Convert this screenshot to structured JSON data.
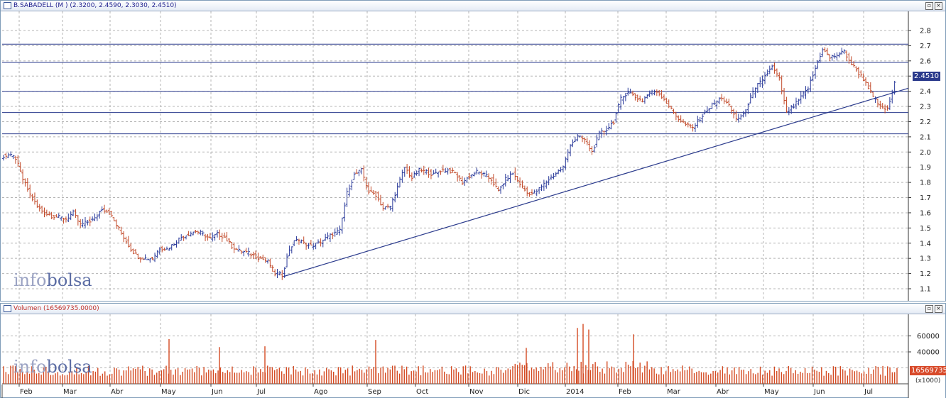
{
  "price_panel": {
    "title": "B.SABADELL (M ) (2.3200, 2.4590, 2.3030, 2.4510)",
    "last_price_label": "2.4510",
    "watermark_a": "info",
    "watermark_b": "bolsa"
  },
  "volume_panel": {
    "title": "Volumen (16569735.0000)",
    "last_volume_label": "16569735",
    "unit_label": "(x1000)",
    "watermark_a": "info",
    "watermark_b": "bolsa"
  },
  "colors": {
    "up": "#2a3a9a",
    "down": "#c24a2a",
    "volume": "#d44a22",
    "grid": "#b4b4b4",
    "lines": "#2a3a8c"
  },
  "chart_data": [
    {
      "type": "ohlc",
      "title": "B.SABADELL (M ) (2.3200, 2.4590, 2.3030, 2.4510)",
      "ylim": [
        1.03,
        2.87
      ],
      "yticks": [
        "1.1",
        "1.2",
        "1.3",
        "1.4",
        "1.5",
        "1.6",
        "1.7",
        "1.8",
        "1.9",
        "2.0",
        "2.1",
        "2.2",
        "2.3",
        "2.4",
        "2.5",
        "2.6",
        "2.7",
        "2.8"
      ],
      "x_tick_labels": [
        "Feb",
        "Mar",
        "Abr",
        "May",
        "Jun",
        "Jul",
        "Ago",
        "Sep",
        "Oct",
        "Nov",
        "Dic",
        "2014",
        "Feb",
        "Mar",
        "Abr",
        "May",
        "Jun",
        "Jul"
      ],
      "grid": true,
      "horizontal_levels": [
        2.71,
        2.59,
        2.4,
        2.26,
        2.12
      ],
      "trendline": {
        "from": [
          "Jul",
          1.18
        ],
        "to": [
          "Jul 2014",
          2.42
        ]
      },
      "close_path": [
        [
          "Ene",
          1.97
        ],
        [
          "Ene",
          1.98
        ],
        [
          "Ene",
          1.96
        ],
        [
          "Ene",
          1.82
        ],
        [
          "Ene",
          1.72
        ],
        [
          "Ene",
          1.64
        ],
        [
          "Feb",
          1.6
        ],
        [
          "Feb",
          1.58
        ],
        [
          "Feb",
          1.57
        ],
        [
          "Feb",
          1.56
        ],
        [
          "Feb",
          1.6
        ],
        [
          "Feb",
          1.52
        ],
        [
          "Mar",
          1.54
        ],
        [
          "Mar",
          1.56
        ],
        [
          "Mar",
          1.63
        ],
        [
          "Mar",
          1.6
        ],
        [
          "Mar",
          1.52
        ],
        [
          "Mar",
          1.44
        ],
        [
          "Abr",
          1.36
        ],
        [
          "Abr",
          1.31
        ],
        [
          "Abr",
          1.3
        ],
        [
          "Abr",
          1.3
        ],
        [
          "Abr",
          1.37
        ],
        [
          "Abr",
          1.36
        ],
        [
          "Abr",
          1.4
        ],
        [
          "May",
          1.44
        ],
        [
          "May",
          1.46
        ],
        [
          "May",
          1.48
        ],
        [
          "May",
          1.46
        ],
        [
          "May",
          1.43
        ],
        [
          "May",
          1.46
        ],
        [
          "May",
          1.44
        ],
        [
          "Jun",
          1.38
        ],
        [
          "Jun",
          1.35
        ],
        [
          "Jun",
          1.34
        ],
        [
          "Jun",
          1.32
        ],
        [
          "Jun",
          1.3
        ],
        [
          "Jun",
          1.28
        ],
        [
          "Jun",
          1.2
        ],
        [
          "Jul",
          1.19
        ],
        [
          "Jul",
          1.36
        ],
        [
          "Jul",
          1.43
        ],
        [
          "Jul",
          1.4
        ],
        [
          "Jul",
          1.38
        ],
        [
          "Jul",
          1.4
        ],
        [
          "Jul",
          1.43
        ],
        [
          "Jul",
          1.46
        ],
        [
          "Ago",
          1.48
        ],
        [
          "Ago",
          1.73
        ],
        [
          "Ago",
          1.85
        ],
        [
          "Ago",
          1.88
        ],
        [
          "Ago",
          1.74
        ],
        [
          "Ago",
          1.72
        ],
        [
          "Sep",
          1.63
        ],
        [
          "Sep",
          1.64
        ],
        [
          "Sep",
          1.77
        ],
        [
          "Sep",
          1.9
        ],
        [
          "Sep",
          1.83
        ],
        [
          "Sep",
          1.88
        ],
        [
          "Sep",
          1.87
        ],
        [
          "Oct",
          1.85
        ],
        [
          "Oct",
          1.88
        ],
        [
          "Oct",
          1.88
        ],
        [
          "Oct",
          1.86
        ],
        [
          "Oct",
          1.8
        ],
        [
          "Oct",
          1.84
        ],
        [
          "Oct",
          1.87
        ],
        [
          "Nov",
          1.85
        ],
        [
          "Nov",
          1.82
        ],
        [
          "Nov",
          1.74
        ],
        [
          "Nov",
          1.82
        ],
        [
          "Nov",
          1.86
        ],
        [
          "Nov",
          1.79
        ],
        [
          "Dic",
          1.73
        ],
        [
          "Dic",
          1.73
        ],
        [
          "Dic",
          1.77
        ],
        [
          "Dic",
          1.82
        ],
        [
          "Dic",
          1.86
        ],
        [
          "Dic",
          1.9
        ],
        [
          "2014",
          2.05
        ],
        [
          "2014",
          2.1
        ],
        [
          "2014",
          2.08
        ],
        [
          "2014",
          2.0
        ],
        [
          "2014",
          2.12
        ],
        [
          "2014",
          2.15
        ],
        [
          "Feb",
          2.2
        ],
        [
          "Feb",
          2.35
        ],
        [
          "Feb",
          2.4
        ],
        [
          "Feb",
          2.36
        ],
        [
          "Feb",
          2.34
        ],
        [
          "Feb",
          2.39
        ],
        [
          "Mar",
          2.4
        ],
        [
          "Mar",
          2.35
        ],
        [
          "Mar",
          2.28
        ],
        [
          "Mar",
          2.22
        ],
        [
          "Mar",
          2.18
        ],
        [
          "Mar",
          2.16
        ],
        [
          "Mar",
          2.22
        ],
        [
          "Abr",
          2.28
        ],
        [
          "Abr",
          2.32
        ],
        [
          "Abr",
          2.36
        ],
        [
          "Abr",
          2.3
        ],
        [
          "Abr",
          2.22
        ],
        [
          "Abr",
          2.24
        ],
        [
          "Abr",
          2.36
        ],
        [
          "May",
          2.44
        ],
        [
          "May",
          2.5
        ],
        [
          "May",
          2.56
        ],
        [
          "May",
          2.48
        ],
        [
          "May",
          2.26
        ],
        [
          "May",
          2.3
        ],
        [
          "May",
          2.36
        ],
        [
          "Jun",
          2.42
        ],
        [
          "Jun",
          2.55
        ],
        [
          "Jun",
          2.68
        ],
        [
          "Jun",
          2.62
        ],
        [
          "Jun",
          2.64
        ],
        [
          "Jun",
          2.66
        ],
        [
          "Jun",
          2.58
        ],
        [
          "Jul",
          2.52
        ],
        [
          "Jul",
          2.46
        ],
        [
          "Jul",
          2.36
        ],
        [
          "Jul",
          2.3
        ],
        [
          "Jul",
          2.28
        ],
        [
          "Jul",
          2.45
        ]
      ]
    },
    {
      "type": "bar",
      "title": "Volumen (16569735.0000)",
      "ylabel": "(x1000)",
      "ylim": [
        0,
        80000
      ],
      "yticks": [
        "40000",
        "60000"
      ],
      "x_tick_labels": [
        "Feb",
        "Mar",
        "Abr",
        "May",
        "Jun",
        "Jul",
        "Ago",
        "Sep",
        "Oct",
        "Nov",
        "Dic",
        "2014",
        "Feb",
        "Mar",
        "Abr",
        "May",
        "Jun",
        "Jul"
      ],
      "grid": true,
      "notable_values": [
        [
          "Jul",
          47000
        ],
        [
          "Sep",
          55000
        ],
        [
          "Dic",
          45000
        ],
        [
          "2014",
          70000
        ],
        [
          "2014",
          75000
        ],
        [
          "2014",
          68000
        ],
        [
          "Feb",
          62000
        ],
        [
          "May",
          56000
        ],
        [
          "Jun",
          46000
        ]
      ],
      "typical_range": [
        10000,
        30000
      ]
    }
  ]
}
